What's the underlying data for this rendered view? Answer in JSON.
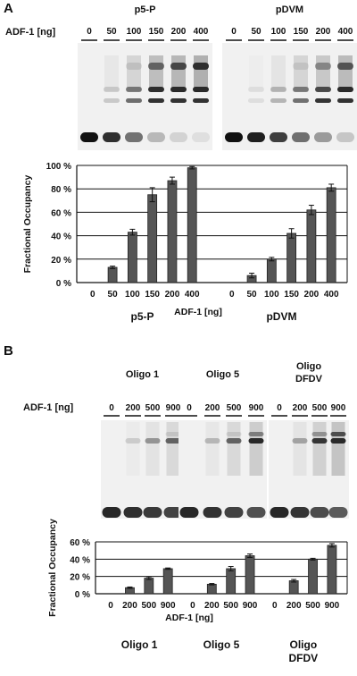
{
  "panels": {
    "a": {
      "letter": "A",
      "gel": {
        "dose_label": "ADF-1 [ng]",
        "groups": [
          {
            "name": "p5-P",
            "lanes": [
              "0",
              "50",
              "100",
              "150",
              "200",
              "400"
            ]
          },
          {
            "name": "pDVM",
            "lanes": [
              "0",
              "50",
              "100",
              "150",
              "200",
              "400"
            ]
          }
        ]
      }
    },
    "b": {
      "letter": "B",
      "gel": {
        "dose_label": "ADF-1 [ng]",
        "groups": [
          {
            "name_lines": [
              "Oligo 1"
            ],
            "lanes": [
              "0",
              "200",
              "500",
              "900"
            ]
          },
          {
            "name_lines": [
              "Oligo 5"
            ],
            "lanes": [
              "0",
              "200",
              "500",
              "900"
            ]
          },
          {
            "name_lines": [
              "Oligo",
              "DFDV"
            ],
            "lanes": [
              "0",
              "200",
              "500",
              "900"
            ]
          }
        ]
      }
    }
  },
  "chart_data": [
    {
      "type": "bar",
      "ylabel": "Fractional Occupancy",
      "xlabel": "ADF-1 [ng]",
      "yticks": [
        "0 %",
        "20 %",
        "40 %",
        "60 %",
        "80 %",
        "100 %"
      ],
      "ylim": [
        0,
        100
      ],
      "grid": true,
      "groups": [
        {
          "name": "p5-P",
          "categories": [
            "0",
            "50",
            "100",
            "150",
            "200",
            "400"
          ],
          "values": [
            0,
            13,
            43,
            75,
            87,
            98
          ],
          "errors": [
            0,
            1,
            2.5,
            6,
            3,
            1
          ]
        },
        {
          "name": "pDVM",
          "categories": [
            "0",
            "50",
            "100",
            "150",
            "200",
            "400"
          ],
          "values": [
            0,
            6,
            20,
            42,
            62,
            81
          ],
          "errors": [
            0,
            2,
            1.5,
            4,
            4,
            3
          ]
        }
      ]
    },
    {
      "type": "bar",
      "ylabel": "Fractional Occupancy",
      "xlabel": "ADF-1 [ng]",
      "yticks": [
        "0 %",
        "20 %",
        "40 %",
        "60 %"
      ],
      "ylim": [
        0,
        60
      ],
      "grid": true,
      "groups": [
        {
          "name_lines": [
            "Oligo 1"
          ],
          "categories": [
            "0",
            "200",
            "500",
            "900"
          ],
          "values": [
            0,
            7,
            18,
            29
          ],
          "errors": [
            0,
            0.8,
            1.5,
            0.8
          ]
        },
        {
          "name_lines": [
            "Oligo 5"
          ],
          "categories": [
            "0",
            "200",
            "500",
            "900"
          ],
          "values": [
            0,
            11,
            29,
            44
          ],
          "errors": [
            0,
            0.8,
            2.5,
            2
          ]
        },
        {
          "name_lines": [
            "Oligo",
            "DFDV"
          ],
          "categories": [
            "0",
            "200",
            "500",
            "900"
          ],
          "values": [
            0,
            15,
            40,
            56
          ],
          "errors": [
            0,
            1.5,
            1,
            2
          ]
        }
      ]
    }
  ]
}
